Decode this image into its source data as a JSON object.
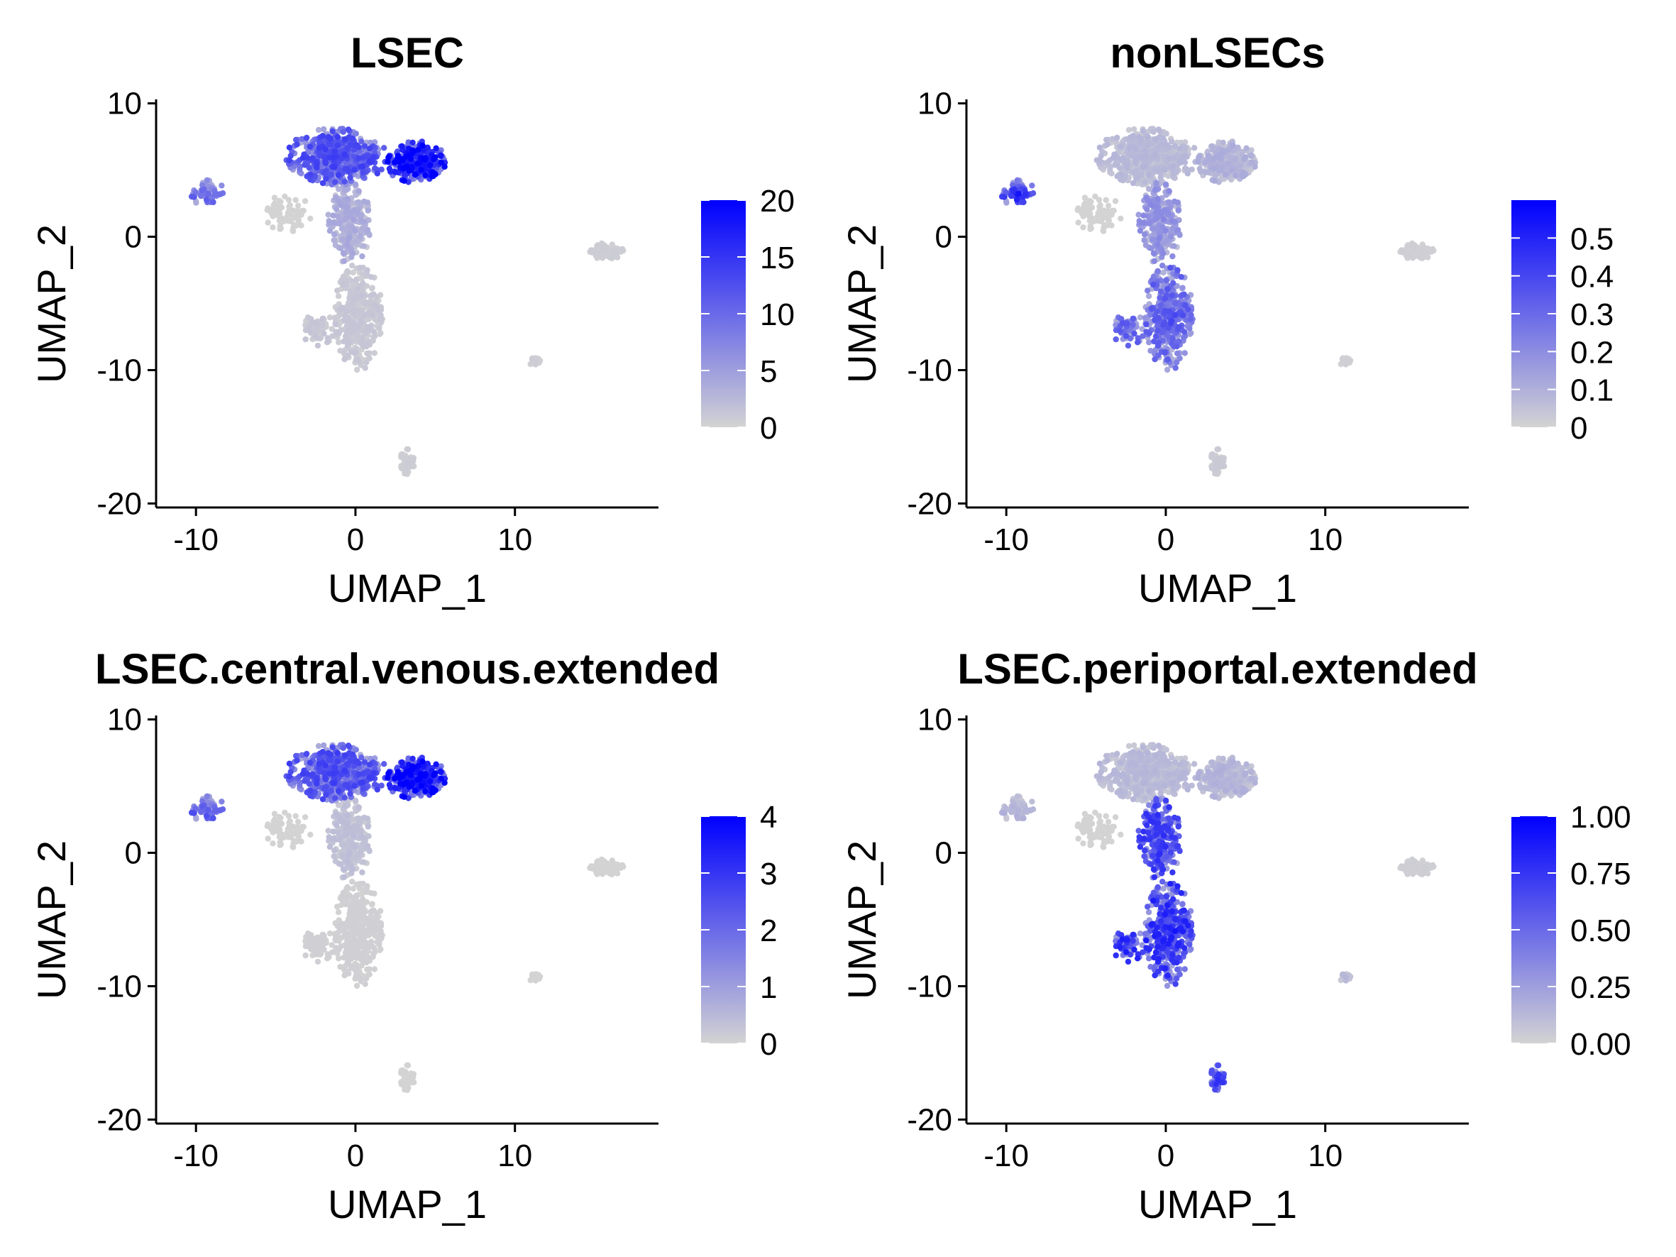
{
  "chart_data": [
    {
      "type": "scatter",
      "title": "LSEC",
      "xlabel": "UMAP_1",
      "ylabel": "UMAP_2",
      "xlim": [
        -12.5,
        19
      ],
      "ylim": [
        -20.3,
        10.3
      ],
      "xticks": [
        -10,
        0,
        10
      ],
      "yticks": [
        10,
        0,
        -10,
        -20
      ],
      "color_scale": {
        "low": "#d3d3d3",
        "high": "#0000ff",
        "min": 0,
        "max": 20,
        "ticks": [
          0,
          5,
          10,
          15,
          20
        ]
      },
      "hotspots": [
        {
          "cluster": "right_lobe",
          "x": 4.5,
          "y": 5.8,
          "r": 1.8,
          "value": 20
        },
        {
          "cluster": "top_left_lobe",
          "x": -1.2,
          "y": 6.0,
          "r": 3.0,
          "value": 12
        }
      ],
      "level": {
        "right_lobe": 15,
        "top_left_lobe": 10,
        "left_small": 8,
        "stem_top": 3,
        "stem_low": 1,
        "bottom_left": 1,
        "right_island": 0.5,
        "small_island": 0.5,
        "bottom_island": 0.5
      }
    },
    {
      "type": "scatter",
      "title": "nonLSECs",
      "xlabel": "UMAP_1",
      "ylabel": "UMAP_2",
      "xlim": [
        -12.5,
        19
      ],
      "ylim": [
        -20.3,
        10.3
      ],
      "xticks": [
        -10,
        0,
        10
      ],
      "yticks": [
        10,
        0,
        -10,
        -20
      ],
      "color_scale": {
        "low": "#d3d3d3",
        "high": "#0000ff",
        "min": 0,
        "max": 0.6,
        "ticks": [
          0.0,
          0.1,
          0.2,
          0.3,
          0.4,
          0.5
        ]
      },
      "hotspots": [
        {
          "cluster": "left_small",
          "x": -9.2,
          "y": 3.2,
          "r": 1.2,
          "value": 0.5
        },
        {
          "cluster": "stem_low",
          "x": 0.5,
          "y": -6.0,
          "r": 2.5,
          "value": 0.35
        }
      ],
      "level": {
        "right_lobe": 0.08,
        "top_left_lobe": 0.06,
        "left_small": 0.3,
        "stem_top": 0.15,
        "stem_low": 0.25,
        "bottom_left": 0.25,
        "right_island": 0.01,
        "small_island": 0.01,
        "bottom_island": 0.02
      }
    },
    {
      "type": "scatter",
      "title": "LSEC.central.venous.extended",
      "xlabel": "UMAP_1",
      "ylabel": "UMAP_2",
      "xlim": [
        -12.5,
        19
      ],
      "ylim": [
        -20.3,
        10.3
      ],
      "xticks": [
        -10,
        0,
        10
      ],
      "yticks": [
        10,
        0,
        -10,
        -20
      ],
      "color_scale": {
        "low": "#d3d3d3",
        "high": "#0000ff",
        "min": 0,
        "max": 4,
        "ticks": [
          0,
          1,
          2,
          3,
          4
        ]
      },
      "hotspots": [
        {
          "cluster": "right_lobe",
          "x": 4.3,
          "y": 5.8,
          "r": 2.0,
          "value": 4
        }
      ],
      "level": {
        "right_lobe": 3.0,
        "top_left_lobe": 2.0,
        "left_small": 1.8,
        "stem_top": 0.3,
        "stem_low": 0.05,
        "bottom_left": 0.05,
        "right_island": 0.0,
        "small_island": 0.0,
        "bottom_island": 0.0
      }
    },
    {
      "type": "scatter",
      "title": "LSEC.periportal.extended",
      "xlabel": "UMAP_1",
      "ylabel": "UMAP_2",
      "xlim": [
        -12.5,
        19
      ],
      "ylim": [
        -20.3,
        10.3
      ],
      "xticks": [
        -10,
        0,
        10
      ],
      "yticks": [
        10,
        0,
        -10,
        -20
      ],
      "color_scale": {
        "low": "#d3d3d3",
        "high": "#0000ff",
        "min": 0,
        "max": 1,
        "ticks": [
          "0.00",
          "0.25",
          "0.50",
          "0.75",
          "1.00"
        ]
      },
      "hotspots": [
        {
          "cluster": "stem_low",
          "x": 0.6,
          "y": -5.5,
          "r": 2.2,
          "value": 0.8
        },
        {
          "cluster": "stem_top",
          "x": -0.3,
          "y": 0.5,
          "r": 1.5,
          "value": 0.7
        }
      ],
      "level": {
        "right_lobe": 0.12,
        "top_left_lobe": 0.1,
        "left_small": 0.12,
        "stem_top": 0.55,
        "stem_low": 0.6,
        "bottom_left": 0.6,
        "right_island": 0.02,
        "small_island": 0.1,
        "bottom_island": 0.55
      }
    }
  ],
  "clusters": [
    {
      "id": "top_left_lobe",
      "x": -1.2,
      "y": 6.0,
      "rx": 3.0,
      "ry": 2.1,
      "n": 520
    },
    {
      "id": "right_lobe",
      "x": 3.8,
      "y": 5.6,
      "rx": 1.9,
      "ry": 1.5,
      "n": 240
    },
    {
      "id": "left_small",
      "x": -9.3,
      "y": 3.3,
      "rx": 1.1,
      "ry": 0.9,
      "n": 60
    },
    {
      "id": "mid_left",
      "x": -4.2,
      "y": 1.8,
      "rx": 1.5,
      "ry": 1.4,
      "n": 70
    },
    {
      "id": "stem_top",
      "x": -0.4,
      "y": 1.0,
      "rx": 1.3,
      "ry": 3.0,
      "n": 260
    },
    {
      "id": "stem_low",
      "x": 0.2,
      "y": -6.0,
      "rx": 1.5,
      "ry": 3.8,
      "n": 360
    },
    {
      "id": "bottom_left",
      "x": -2.3,
      "y": -7.0,
      "rx": 0.9,
      "ry": 1.4,
      "n": 60
    },
    {
      "id": "right_island",
      "x": 15.7,
      "y": -1.1,
      "rx": 1.1,
      "ry": 0.6,
      "n": 70
    },
    {
      "id": "small_island",
      "x": 11.2,
      "y": -9.3,
      "rx": 0.4,
      "ry": 0.3,
      "n": 15
    },
    {
      "id": "bottom_island",
      "x": 3.2,
      "y": -16.9,
      "rx": 0.5,
      "ry": 1.0,
      "n": 40
    }
  ]
}
